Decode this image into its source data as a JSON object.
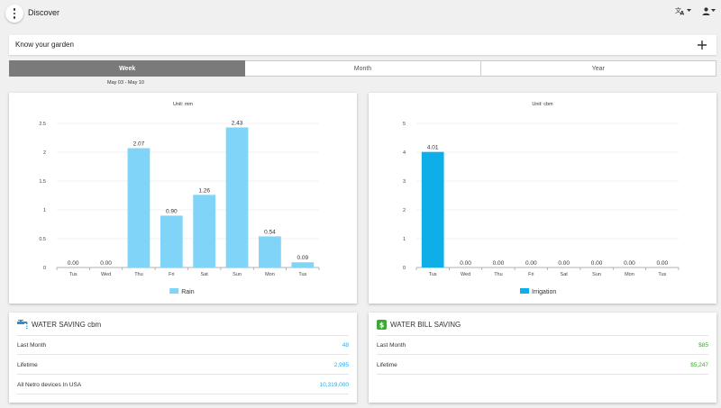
{
  "header": {
    "title": "Discover"
  },
  "garden": {
    "label": "Know your garden"
  },
  "tabs": [
    {
      "label": "Week",
      "active": true
    },
    {
      "label": "Month",
      "active": false
    },
    {
      "label": "Year",
      "active": false
    }
  ],
  "date_range": "May 03 - May 10",
  "chart_data": [
    {
      "type": "bar",
      "title": "Unit: mm",
      "categories": [
        "Tus",
        "Wed",
        "Thu",
        "Fri",
        "Sat",
        "Sun",
        "Mon",
        "Tus"
      ],
      "series": [
        {
          "name": "Rain",
          "values": [
            0.0,
            0.0,
            2.07,
            0.9,
            1.26,
            2.43,
            0.54,
            0.09
          ],
          "color": "#7fd4f7"
        }
      ],
      "data_labels": [
        "0.00",
        "0.00",
        "2.07",
        "0.90",
        "1.26",
        "2.43",
        "0.54",
        "0.09"
      ],
      "y_ticks": [
        "0",
        "0.5",
        "1",
        "1.5",
        "2",
        "2.5"
      ],
      "ylim": [
        0,
        2.5
      ],
      "legend": "bottom",
      "grid": true
    },
    {
      "type": "bar",
      "title": "Unit: cbm",
      "categories": [
        "Tus",
        "Wed",
        "Thu",
        "Fri",
        "Sat",
        "Sun",
        "Mon",
        "Tus"
      ],
      "series": [
        {
          "name": "Irrigation",
          "values": [
            4.01,
            0.0,
            0.0,
            0.0,
            0.0,
            0.0,
            0.0,
            0.0
          ],
          "color": "#0eaee8"
        }
      ],
      "data_labels": [
        "4.01",
        "0.00",
        "0.00",
        "0.00",
        "0.00",
        "0.00",
        "0.00",
        "0.00"
      ],
      "y_ticks": [
        "0",
        "1",
        "2",
        "3",
        "4",
        "5"
      ],
      "ylim": [
        0,
        5
      ],
      "legend": "bottom",
      "grid": true
    }
  ],
  "water_saving": {
    "title": "WATER SAVING cbm",
    "rows": [
      {
        "label": "Last Month",
        "value": "48"
      },
      {
        "label": "Lifetime",
        "value": "2,995"
      },
      {
        "label": "All Netro devices In USA",
        "value": "10,319,000"
      }
    ]
  },
  "water_bill": {
    "title": "WATER BILL SAVING",
    "rows": [
      {
        "label": "Last Month",
        "value": "$85"
      },
      {
        "label": "Lifetime",
        "value": "$5,247"
      }
    ]
  },
  "colors": {
    "accent_blue": "#29a9ec",
    "accent_green": "#3aaa35",
    "tab_active": "#7a7a7a"
  }
}
